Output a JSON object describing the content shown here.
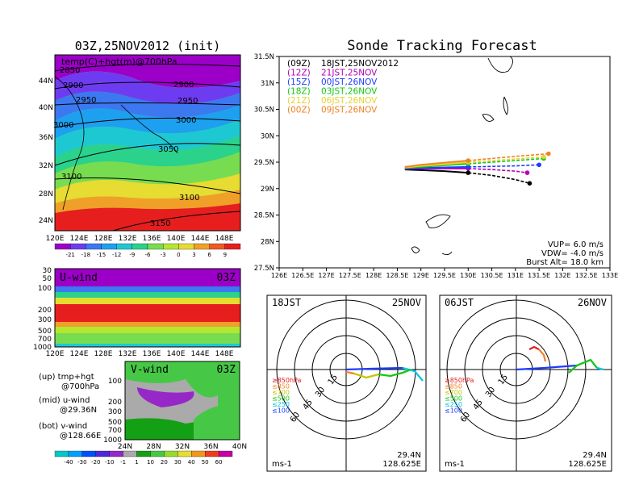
{
  "left_panel": {
    "title": "03Z,25NOV2012 (init)",
    "map_label": "temp(C)+hgt(m)@700hPa",
    "lon_ticks": [
      "120E",
      "124E",
      "128E",
      "132E",
      "136E",
      "140E",
      "144E",
      "148E"
    ],
    "lat_ticks": [
      "44N",
      "40N",
      "36N",
      "32N",
      "28N",
      "24N"
    ],
    "contour_labels": [
      "2850",
      "2900",
      "2900",
      "2950",
      "2950",
      "3000",
      "3000",
      "3050",
      "3100",
      "3100",
      "3150"
    ],
    "temp_colorbar": [
      "-21",
      "-18",
      "-15",
      "-12",
      "-9",
      "-6",
      "-3",
      "0",
      "3",
      "6",
      "9"
    ],
    "temp_colors": [
      "#9c00c8",
      "#6e3cf0",
      "#3c78f0",
      "#1ea0f0",
      "#1ec8d2",
      "#2ad28c",
      "#78dc50",
      "#b4e632",
      "#e6dc32",
      "#f0a028",
      "#f05a28",
      "#e61e1e"
    ]
  },
  "uwind_panel": {
    "label": "U-wind",
    "time": "03Z",
    "p_ticks": [
      "30",
      "50",
      "100",
      "200",
      "300",
      "500",
      "700",
      "1000"
    ],
    "lon_ticks": [
      "120E",
      "124E",
      "128E",
      "132E",
      "136E",
      "140E",
      "144E",
      "148E"
    ]
  },
  "vwind_panel": {
    "label": "V-wind",
    "time": "03Z",
    "p_ticks": [
      "100",
      "200",
      "300",
      "500",
      "700",
      "1000"
    ],
    "lat_ticks": [
      "24N",
      "28N",
      "32N",
      "36N",
      "40N"
    ],
    "colorbar": [
      "-40",
      "-30",
      "-20",
      "-10",
      "-1",
      "1",
      "10",
      "20",
      "30",
      "40",
      "50",
      "60"
    ],
    "colors": [
      "#00c8c8",
      "#00a0ff",
      "#0050ff",
      "#5028dc",
      "#9628c8",
      "#aaaaaa",
      "#14a014",
      "#46c846",
      "#96dc28",
      "#e6dc32",
      "#f0961e",
      "#f03c1e",
      "#c800a0"
    ]
  },
  "notes": {
    "up": "(up) tmp+hgt",
    "up2": "@700hPa",
    "mid": "(mid) u-wind",
    "mid2": "@29.36N",
    "bot": "(bot) v-wind",
    "bot2": "@128.66E"
  },
  "tracking": {
    "title": "Sonde Tracking Forecast",
    "lon_ticks": [
      "126E",
      "126.5E",
      "127E",
      "127.5E",
      "128E",
      "128.5E",
      "129E",
      "129.5E",
      "130E",
      "130.5E",
      "131E",
      "131.5E",
      "132E",
      "132.5E",
      "133E"
    ],
    "lat_ticks": [
      "31.5N",
      "31N",
      "30.5N",
      "30N",
      "29.5N",
      "29N",
      "28.5N",
      "28N",
      "27.5N"
    ],
    "legend": [
      {
        "code": "(09Z)",
        "time": "18JST,25NOV2012",
        "color": "#000000"
      },
      {
        "code": "(12Z)",
        "time": "21JST,25NOV",
        "color": "#b400b4"
      },
      {
        "code": "(15Z)",
        "time": "00JST,26NOV",
        "color": "#1e3cff"
      },
      {
        "code": "(18Z)",
        "time": "03JST,26NOV",
        "color": "#14c814"
      },
      {
        "code": "(21Z)",
        "time": "06JST,26NOV",
        "color": "#e6d232"
      },
      {
        "code": "(00Z)",
        "time": "09JST,26NOV",
        "color": "#f08228"
      }
    ],
    "params": {
      "vup": "VUP=  6.0 m/s",
      "vdw": "VDW= -4.0 m/s",
      "burst": "Burst Alt= 18.0 km"
    }
  },
  "chart_data": {
    "type": "line",
    "title": "Sonde Tracking Forecast",
    "xlim": [
      126,
      133
    ],
    "ylim": [
      27.5,
      31.5
    ],
    "series": [
      {
        "name": "(09Z) 18JST,25NOV2012",
        "x": [
          128.66,
          129.0,
          129.5,
          130.0,
          130.5,
          131.0,
          131.3
        ],
        "y": [
          29.36,
          29.35,
          29.33,
          29.3,
          29.25,
          29.17,
          29.1
        ]
      },
      {
        "name": "(12Z) 21JST,25NOV",
        "x": [
          128.66,
          129.0,
          129.5,
          130.0,
          130.5,
          131.0,
          131.25
        ],
        "y": [
          29.37,
          29.38,
          29.38,
          29.38,
          29.36,
          29.33,
          29.3
        ]
      },
      {
        "name": "(15Z) 00JST,26NOV",
        "x": [
          128.66,
          129.0,
          129.5,
          130.0,
          130.5,
          131.0,
          131.5
        ],
        "y": [
          29.38,
          29.39,
          29.4,
          29.41,
          29.42,
          29.43,
          29.45
        ]
      },
      {
        "name": "(18Z) 03JST,26NOV",
        "x": [
          128.66,
          129.0,
          129.5,
          130.0,
          130.5,
          131.0,
          131.6
        ],
        "y": [
          29.39,
          29.41,
          29.44,
          29.47,
          29.5,
          29.53,
          29.57
        ]
      },
      {
        "name": "(21Z) 06JST,26NOV",
        "x": [
          128.66,
          129.0,
          129.5,
          130.0,
          130.5,
          131.0,
          131.6
        ],
        "y": [
          29.4,
          29.43,
          29.46,
          29.5,
          29.53,
          29.56,
          29.6
        ]
      },
      {
        "name": "(00Z) 09JST,26NOV",
        "x": [
          128.66,
          129.0,
          129.5,
          130.0,
          130.5,
          131.0,
          131.7
        ],
        "y": [
          29.41,
          29.45,
          29.49,
          29.53,
          29.57,
          29.61,
          29.66
        ]
      }
    ]
  },
  "hodo_left": {
    "time": "18JST",
    "date": "25NOV",
    "rings": [
      "15",
      "30",
      "45",
      "60"
    ],
    "levels": [
      "≥850hPa",
      "≤850",
      "≤700",
      "≤500",
      "≤250",
      "≤100"
    ],
    "level_colors": [
      "#e61e1e",
      "#f08228",
      "#c8c800",
      "#14c814",
      "#00c8e6",
      "#1e3cff"
    ],
    "unit": "ms-1",
    "lat": "29.4N",
    "lon": "128.625E"
  },
  "hodo_right": {
    "time": "06JST",
    "date": "26NOV",
    "rings": [
      "15",
      "30",
      "45",
      "60"
    ],
    "levels": [
      "≥850hPa",
      "≤850",
      "≤700",
      "≤500",
      "≤250",
      "≤100"
    ],
    "level_colors": [
      "#e61e1e",
      "#f08228",
      "#c8c800",
      "#14c814",
      "#00c8e6",
      "#1e3cff"
    ],
    "unit": "ms-1",
    "lat": "29.4N",
    "lon": "128.625E"
  }
}
